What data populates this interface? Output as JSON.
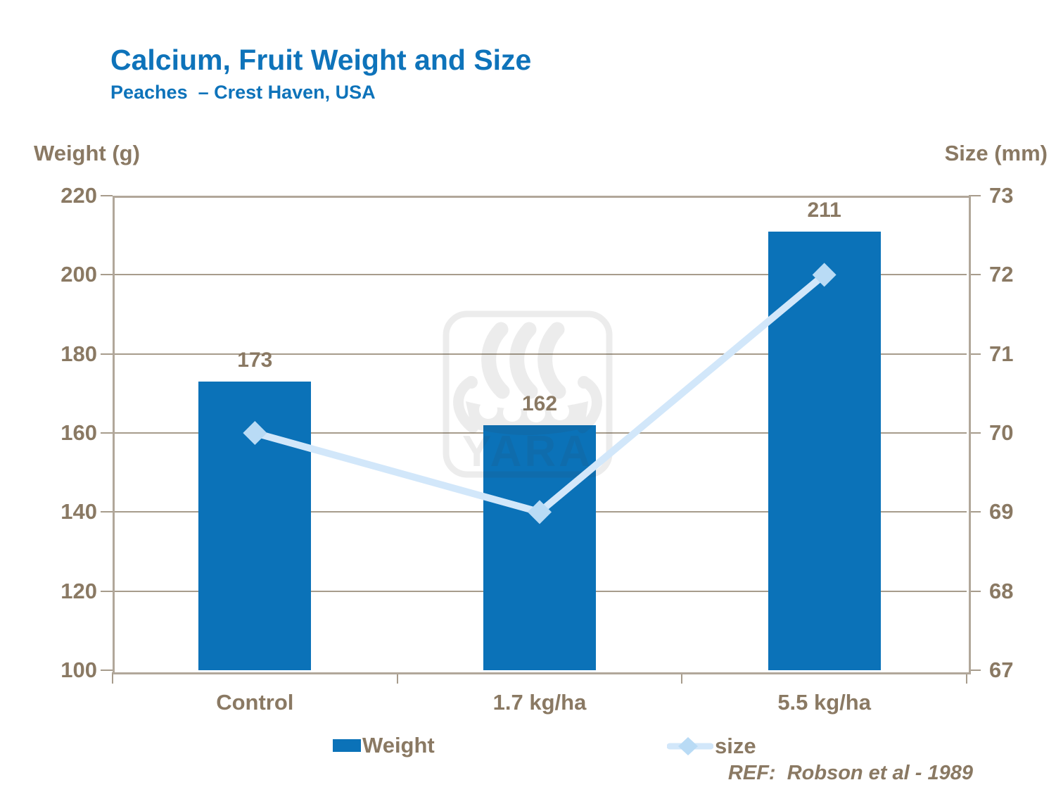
{
  "header": {
    "title": "Calcium, Fruit Weight and Size",
    "subtitle": "Peaches  – Crest Haven, USA"
  },
  "footer": {
    "reference": "REF:  Robson et al - 1989"
  },
  "watermark": {
    "name": "yara-logo",
    "text": "YARA"
  },
  "legend": {
    "weight_label": "Weight",
    "size_label": "size"
  },
  "colors": {
    "title_blue": "#0e73ba",
    "bar_blue": "#0b72b8",
    "text_brown": "#8a7963",
    "grid_line": "#a79c8c",
    "plot_border": "#b1a79a",
    "size_line": "#d2e7fa",
    "size_marker": "#b9dbf5",
    "watermark_gray": "#e9e9e9"
  },
  "chart_data": {
    "type": "bar",
    "subtype": "combo-bar-line",
    "title": "Calcium, Fruit Weight and Size",
    "subtitle": "Peaches – Crest Haven, USA",
    "categories": [
      "Control",
      "1.7 kg/ha",
      "5.5 kg/ha"
    ],
    "series": [
      {
        "name": "Weight",
        "type": "bar",
        "axis": "left",
        "values": [
          173,
          162,
          211
        ]
      },
      {
        "name": "size",
        "type": "line",
        "axis": "right",
        "values": [
          70,
          69,
          72
        ],
        "marker": "diamond"
      }
    ],
    "data_labels": [
      "173",
      "162",
      "211"
    ],
    "left_axis": {
      "title": "Weight (g)",
      "min": 100,
      "max": 220,
      "step": 20,
      "ticks": [
        220,
        200,
        180,
        160,
        140,
        120,
        100
      ]
    },
    "right_axis": {
      "title": "Size (mm)",
      "min": 67,
      "max": 73,
      "step": 1,
      "ticks": [
        73,
        72,
        71,
        70,
        69,
        68,
        67
      ]
    },
    "grid": true,
    "legend_position": "bottom",
    "annotation": "REF:  Robson et al - 1989"
  }
}
